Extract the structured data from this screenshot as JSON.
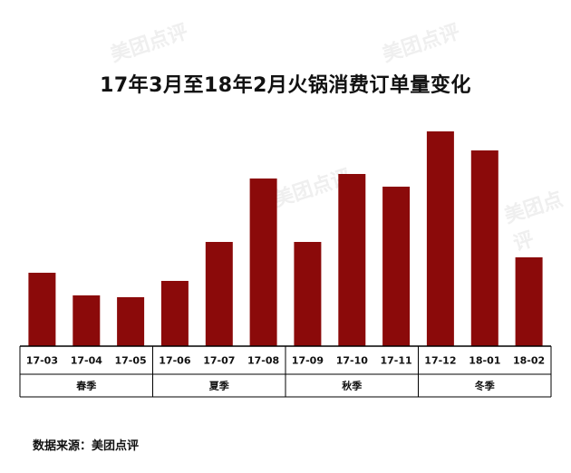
{
  "chart_data": {
    "type": "bar",
    "title": "17年3月至18年2月火锅消费订单量变化",
    "categories": [
      "17-03",
      "17-04",
      "17-05",
      "17-06",
      "17-07",
      "17-08",
      "17-09",
      "17-10",
      "17-11",
      "17-12",
      "18-01",
      "18-02"
    ],
    "values": [
      81,
      56,
      54,
      72,
      115,
      185,
      115,
      190,
      176,
      237,
      216,
      98
    ],
    "seasons": [
      {
        "label": "春季",
        "span": 3
      },
      {
        "label": "夏季",
        "span": 3
      },
      {
        "label": "秋季",
        "span": 3
      },
      {
        "label": "冬季",
        "span": 3
      }
    ],
    "ylim": [
      0,
      250
    ],
    "grid": false,
    "bar_color": "#8b0a0a"
  },
  "source_text": "数据来源：美团点评",
  "watermark_text": "美团点评",
  "colors": {
    "bar": "#8b0a0a",
    "axis": "#000000",
    "watermark": "#efefef"
  }
}
